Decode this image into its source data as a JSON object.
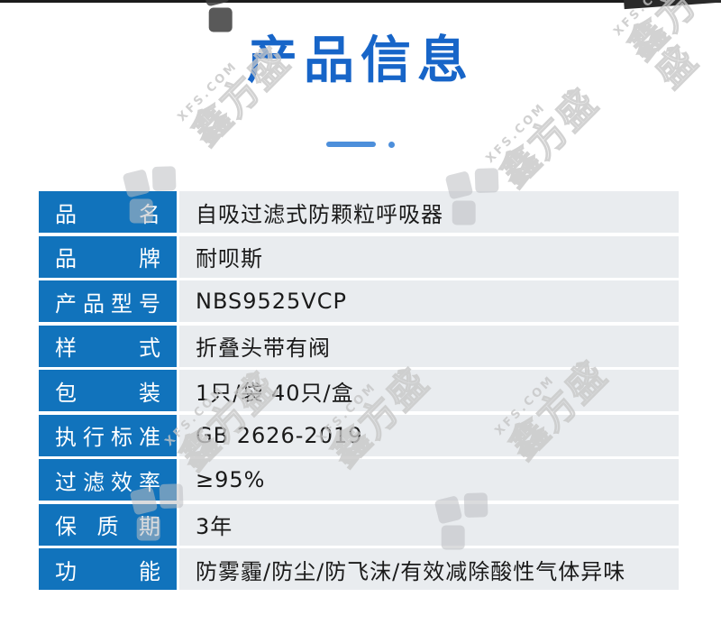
{
  "page": {
    "title": "产品信息",
    "title_color": "#1765c8",
    "accent_color": "#4d8fdb",
    "label_bg_color": "#1173bc",
    "value_bg_color": "#e9ecef"
  },
  "watermark": {
    "site": "XFS.COM",
    "brand": "鑫方盛"
  },
  "product_table": {
    "rows": [
      {
        "label": "品名",
        "value": "自吸过滤式防颗粒呼吸器"
      },
      {
        "label": "品牌",
        "value": "耐呗斯"
      },
      {
        "label": "产品型号",
        "value": "NBS9525VCP"
      },
      {
        "label": "样式",
        "value": "折叠头带有阀"
      },
      {
        "label": "包装",
        "value": "1只/袋 40只/盒"
      },
      {
        "label": "执行标准",
        "value": "GB 2626-2019"
      },
      {
        "label": "过滤效率",
        "value": "≥95%"
      },
      {
        "label": "保质期",
        "value": "3年"
      },
      {
        "label": "功能",
        "value": "防雾霾/防尘/防飞沫/有效减除酸性气体异味"
      }
    ]
  }
}
